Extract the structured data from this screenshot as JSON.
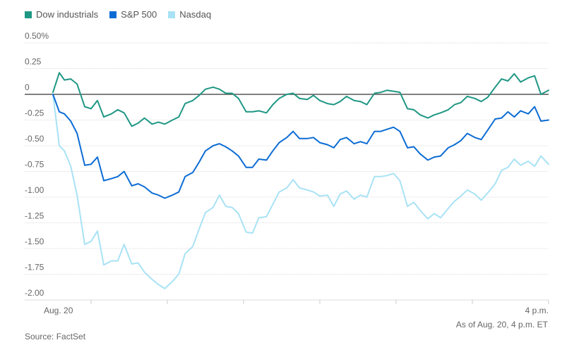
{
  "legend": [
    {
      "name": "Dow industrials",
      "color": "#1f9784"
    },
    {
      "name": "S&P 500",
      "color": "#0c6cd4"
    },
    {
      "name": "Nasdaq",
      "color": "#a9e2f5"
    }
  ],
  "unit_label": "0.50%",
  "note": "As of Aug. 20, 4 p.m. ET",
  "source": "Source: FactSet",
  "chart_data": {
    "type": "line",
    "title": "",
    "xlabel": "",
    "ylabel": "",
    "ylim": [
      -2.1,
      0.5
    ],
    "y_ticks": [
      {
        "value": 0.5,
        "label": "0.50%"
      },
      {
        "value": 0.25,
        "label": "0.25"
      },
      {
        "value": 0,
        "label": "0"
      },
      {
        "value": -0.25,
        "label": "-0.25"
      },
      {
        "value": -0.5,
        "label": "-0.50"
      },
      {
        "value": -0.75,
        "label": "-0.75"
      },
      {
        "value": -1.0,
        "label": "-1.00"
      },
      {
        "value": -1.25,
        "label": "-1.25"
      },
      {
        "value": -1.5,
        "label": "-1.50"
      },
      {
        "value": -1.75,
        "label": "-1.75"
      },
      {
        "value": -2.0,
        "label": "-2.00"
      }
    ],
    "x_tick_labels": [
      "Aug. 20",
      "4 p.m."
    ],
    "x_range_minutes": [
      0,
      390
    ],
    "grid": true,
    "legend_position": "top-left",
    "series": [
      {
        "name": "Dow industrials",
        "color": "#1f9784",
        "x": [
          0,
          5,
          9,
          14,
          19,
          25,
          30,
          35,
          40,
          46,
          51,
          56,
          62,
          67,
          72,
          78,
          83,
          88,
          94,
          99,
          104,
          110,
          115,
          120,
          126,
          131,
          136,
          141,
          146,
          152,
          157,
          162,
          168,
          173,
          178,
          184,
          189,
          194,
          200,
          205,
          210,
          216,
          221,
          226,
          231,
          237,
          242,
          247,
          253,
          258,
          263,
          268,
          273,
          279,
          284,
          289,
          295,
          300,
          305,
          311,
          316,
          321,
          326,
          332,
          337,
          342,
          348,
          353,
          358,
          363,
          368,
          374,
          379,
          384,
          390
        ],
        "values": [
          0.02,
          0.21,
          0.14,
          0.15,
          0.1,
          -0.12,
          -0.14,
          -0.06,
          -0.22,
          -0.19,
          -0.15,
          -0.18,
          -0.31,
          -0.28,
          -0.23,
          -0.29,
          -0.27,
          -0.29,
          -0.25,
          -0.22,
          -0.09,
          -0.06,
          -0.01,
          0.05,
          0.07,
          0.05,
          0.01,
          0.01,
          -0.04,
          -0.17,
          -0.17,
          -0.16,
          -0.18,
          -0.1,
          -0.04,
          0.0,
          0.01,
          -0.04,
          -0.05,
          -0.01,
          -0.06,
          -0.09,
          -0.1,
          -0.07,
          -0.02,
          -0.06,
          -0.07,
          -0.1,
          0.01,
          0.02,
          0.04,
          0.03,
          0.02,
          -0.14,
          -0.15,
          -0.2,
          -0.23,
          -0.2,
          -0.18,
          -0.15,
          -0.1,
          -0.08,
          -0.02,
          -0.04,
          -0.07,
          -0.03,
          0.07,
          0.15,
          0.13,
          0.2,
          0.12,
          0.16,
          0.18,
          0.0,
          0.04
        ]
      },
      {
        "name": "S&P 500",
        "color": "#0c6cd4",
        "x": [
          0,
          5,
          9,
          14,
          19,
          25,
          30,
          35,
          40,
          46,
          51,
          56,
          62,
          67,
          72,
          78,
          83,
          88,
          94,
          99,
          104,
          110,
          115,
          120,
          126,
          131,
          136,
          141,
          146,
          152,
          157,
          162,
          168,
          173,
          178,
          184,
          189,
          194,
          200,
          205,
          210,
          216,
          221,
          226,
          231,
          237,
          242,
          247,
          253,
          258,
          263,
          268,
          273,
          279,
          284,
          289,
          295,
          300,
          305,
          311,
          316,
          321,
          326,
          332,
          337,
          342,
          348,
          353,
          358,
          363,
          368,
          374,
          379,
          384,
          390
        ],
        "values": [
          0.0,
          -0.17,
          -0.19,
          -0.26,
          -0.38,
          -0.69,
          -0.68,
          -0.61,
          -0.84,
          -0.82,
          -0.8,
          -0.75,
          -0.89,
          -0.87,
          -0.9,
          -0.96,
          -0.98,
          -1.01,
          -0.98,
          -0.95,
          -0.8,
          -0.76,
          -0.66,
          -0.55,
          -0.5,
          -0.48,
          -0.51,
          -0.55,
          -0.6,
          -0.71,
          -0.71,
          -0.63,
          -0.64,
          -0.55,
          -0.47,
          -0.42,
          -0.36,
          -0.43,
          -0.43,
          -0.42,
          -0.47,
          -0.49,
          -0.52,
          -0.44,
          -0.42,
          -0.48,
          -0.46,
          -0.48,
          -0.36,
          -0.36,
          -0.34,
          -0.32,
          -0.36,
          -0.52,
          -0.51,
          -0.58,
          -0.64,
          -0.61,
          -0.6,
          -0.52,
          -0.49,
          -0.45,
          -0.38,
          -0.42,
          -0.44,
          -0.35,
          -0.24,
          -0.23,
          -0.17,
          -0.22,
          -0.16,
          -0.19,
          -0.12,
          -0.26,
          -0.25
        ]
      },
      {
        "name": "Nasdaq",
        "color": "#a9e2f5",
        "x": [
          0,
          5,
          9,
          14,
          19,
          25,
          30,
          35,
          40,
          46,
          51,
          56,
          62,
          67,
          72,
          78,
          83,
          88,
          94,
          99,
          104,
          110,
          115,
          120,
          126,
          131,
          136,
          141,
          146,
          152,
          157,
          162,
          168,
          173,
          178,
          184,
          189,
          194,
          200,
          205,
          210,
          216,
          221,
          226,
          231,
          237,
          242,
          247,
          253,
          258,
          263,
          268,
          273,
          279,
          284,
          289,
          295,
          300,
          305,
          311,
          316,
          321,
          326,
          332,
          337,
          342,
          348,
          353,
          358,
          363,
          368,
          374,
          379,
          384,
          390
        ],
        "values": [
          0.0,
          -0.5,
          -0.55,
          -0.7,
          -0.98,
          -1.46,
          -1.43,
          -1.33,
          -1.66,
          -1.62,
          -1.62,
          -1.46,
          -1.65,
          -1.64,
          -1.73,
          -1.8,
          -1.85,
          -1.89,
          -1.82,
          -1.75,
          -1.55,
          -1.48,
          -1.31,
          -1.15,
          -1.1,
          -0.98,
          -1.09,
          -1.1,
          -1.16,
          -1.34,
          -1.35,
          -1.2,
          -1.19,
          -1.07,
          -0.95,
          -0.91,
          -0.83,
          -0.91,
          -0.93,
          -0.95,
          -0.99,
          -0.98,
          -1.09,
          -0.97,
          -0.94,
          -1.02,
          -0.98,
          -1.0,
          -0.8,
          -0.8,
          -0.79,
          -0.77,
          -0.84,
          -1.09,
          -1.05,
          -1.13,
          -1.21,
          -1.16,
          -1.2,
          -1.11,
          -1.04,
          -0.99,
          -0.93,
          -0.97,
          -1.03,
          -0.96,
          -0.87,
          -0.74,
          -0.71,
          -0.63,
          -0.69,
          -0.65,
          -0.7,
          -0.6,
          -0.68
        ]
      }
    ]
  }
}
